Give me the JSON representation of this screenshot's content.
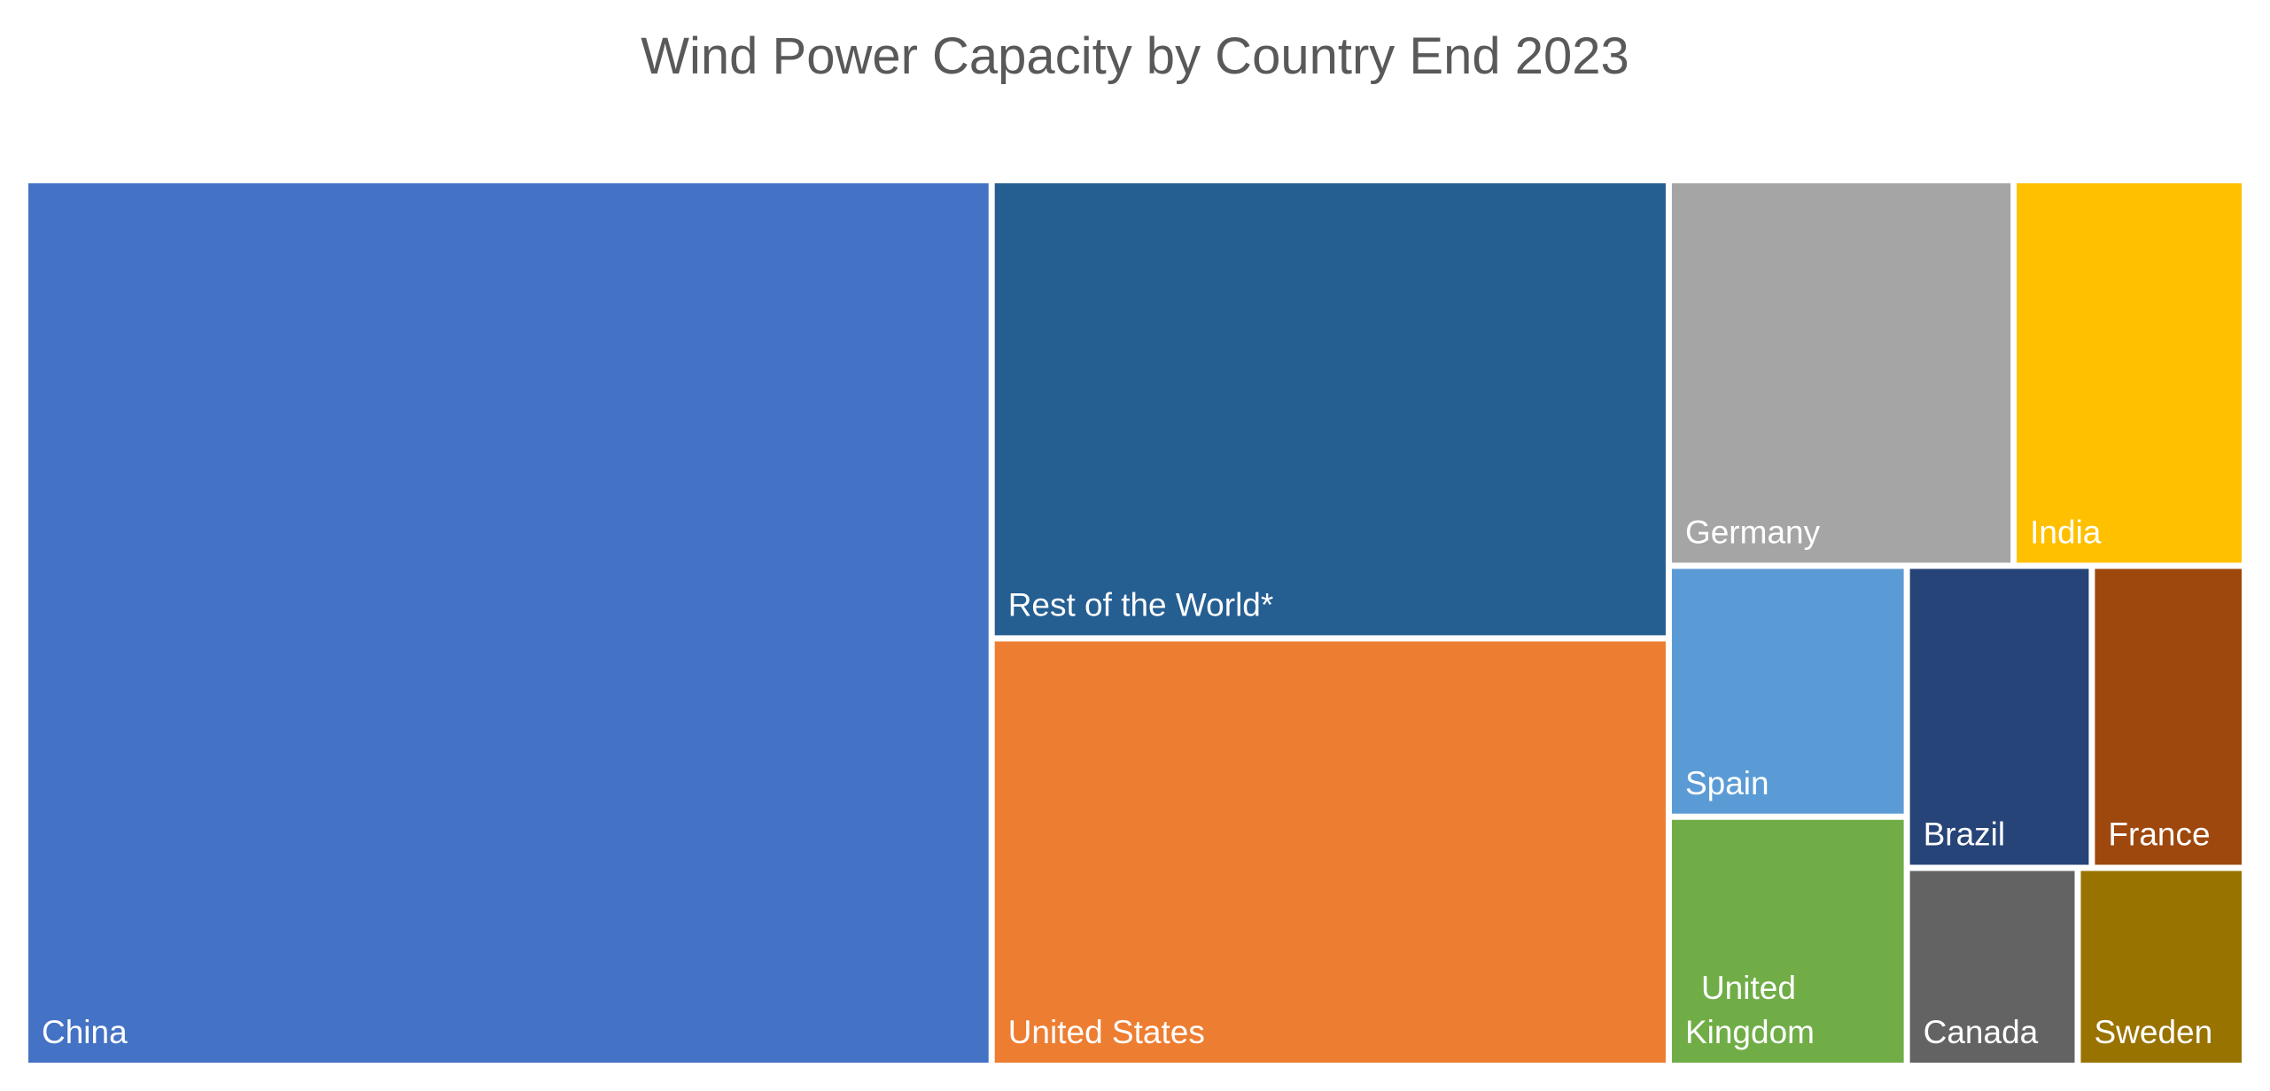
{
  "chart_data": {
    "type": "treemap",
    "title": "Wind Power Capacity by Country End 2023",
    "items": [
      {
        "name": "China",
        "label_lines": [
          "China"
        ],
        "value": 441,
        "color": "#4472C4"
      },
      {
        "name": "Rest of the World*",
        "label_lines": [
          "Rest of the World*"
        ],
        "value": 161,
        "color": "#255E91"
      },
      {
        "name": "United States",
        "label_lines": [
          "United States"
        ],
        "value": 148,
        "color": "#ED7D31"
      },
      {
        "name": "Germany",
        "label_lines": [
          "Germany"
        ],
        "value": 69,
        "color": "#A5A5A5"
      },
      {
        "name": "India",
        "label_lines": [
          "India"
        ],
        "value": 45,
        "color": "#FFC000"
      },
      {
        "name": "Spain",
        "label_lines": [
          "Spain"
        ],
        "value": 31,
        "color": "#5B9BD5"
      },
      {
        "name": "United Kingdom",
        "label_lines": [
          "United",
          "Kingdom"
        ],
        "value": 30,
        "color": "#70AD47"
      },
      {
        "name": "Brazil",
        "label_lines": [
          "Brazil"
        ],
        "value": 29,
        "color": "#264478"
      },
      {
        "name": "France",
        "label_lines": [
          "France"
        ],
        "value": 23,
        "color": "#9E480E"
      },
      {
        "name": "Canada",
        "label_lines": [
          "Canada"
        ],
        "value": 17,
        "color": "#636363"
      },
      {
        "name": "Sweden",
        "label_lines": [
          "Sweden"
        ],
        "value": 16,
        "color": "#997300"
      }
    ]
  }
}
